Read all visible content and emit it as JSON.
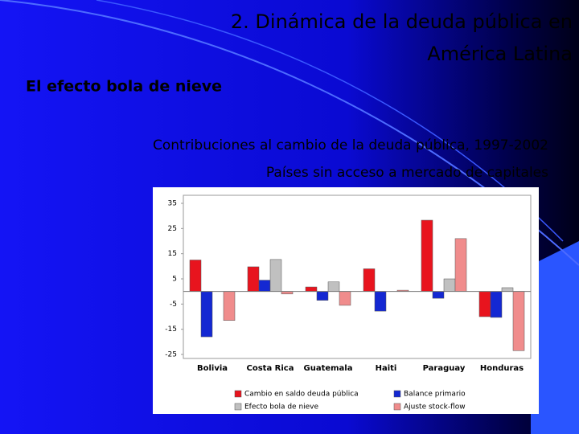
{
  "slide": {
    "title_lines": [
      "2. Dinámica de la deuda pública en",
      "América Latina"
    ],
    "subtitle": "El efecto bola de nieve"
  },
  "chart_data": {
    "type": "bar",
    "title": "Contribuciones al cambio de la deuda pública, 1997-2002",
    "subtitle": "Países sin acceso a mercado de capitales",
    "categories": [
      "Bolivia",
      "Costa Rica",
      "Guatemala",
      "Haiti",
      "Paraguay",
      "Honduras"
    ],
    "series": [
      {
        "name": "Cambio en saldo deuda pública",
        "color": "#e8141e",
        "values": [
          12.5,
          9.8,
          1.8,
          9,
          28.3,
          -10
        ]
      },
      {
        "name": "Balance primario",
        "color": "#1428d2",
        "values": [
          -18,
          4.5,
          -3.5,
          -7.8,
          -2.7,
          -10.3
        ]
      },
      {
        "name": "Efecto bola de nieve",
        "color": "#c0c0c0",
        "values": [
          0,
          12.7,
          3.8,
          0,
          5,
          1.5
        ]
      },
      {
        "name": "Ajuste stock-flow",
        "color": "#f08c8c",
        "values": [
          -11.5,
          -1,
          -5.5,
          0.5,
          21,
          -23.5
        ]
      }
    ],
    "ylim": [
      -25,
      35
    ],
    "yticks": [
      35,
      25,
      15,
      5,
      -5,
      -15,
      -25
    ],
    "grid": false
  }
}
